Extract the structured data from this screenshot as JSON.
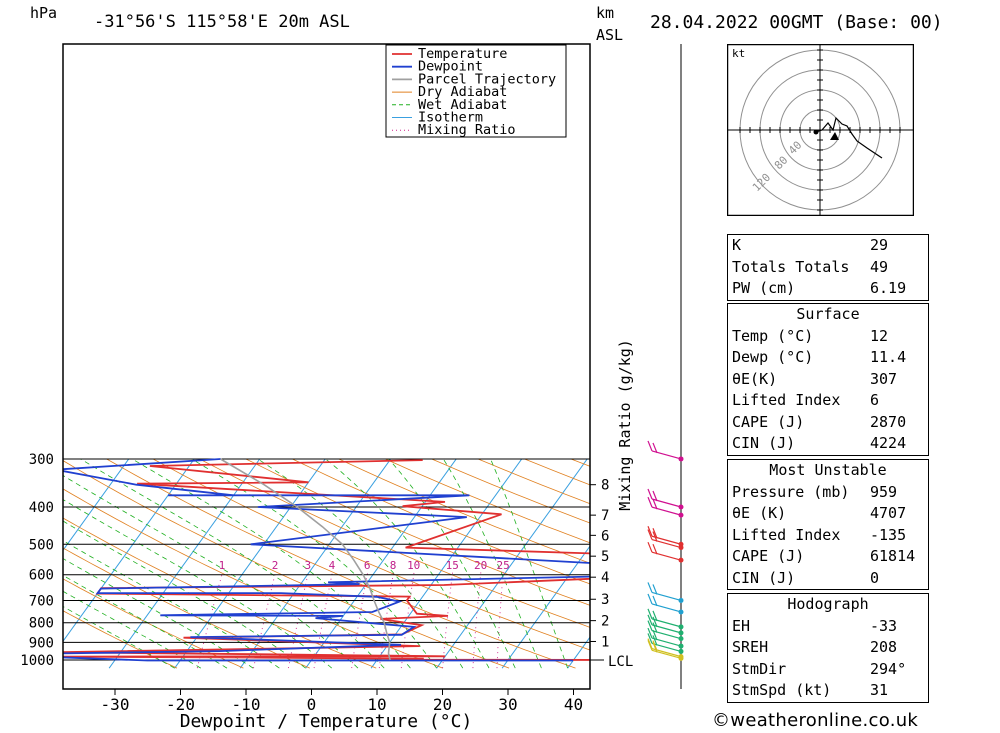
{
  "header": {
    "hpa": "hPa",
    "location": "-31°56'S 115°58'E 20m ASL",
    "km": "km",
    "asl": "ASL",
    "datetime": "28.04.2022 00GMT (Base: 00)"
  },
  "chart_data": {
    "type": "line",
    "xlabel": "Dewpoint / Temperature (°C)",
    "ylabel": "hPa",
    "x_ticks": [
      -30,
      -20,
      -10,
      0,
      10,
      20,
      30,
      40
    ],
    "y_ticks": [
      300,
      400,
      500,
      600,
      700,
      800,
      900,
      1000
    ],
    "xlim": [
      -38,
      42
    ],
    "ylim": [
      1050,
      300
    ],
    "skew": "skew-T log-p",
    "km_ticks": [
      {
        "km": "8",
        "p": 350
      },
      {
        "km": "7",
        "p": 420
      },
      {
        "km": "6",
        "p": 474
      },
      {
        "km": "5",
        "p": 537
      },
      {
        "km": "4",
        "p": 609
      },
      {
        "km": "3",
        "p": 695
      },
      {
        "km": "2",
        "p": 790
      },
      {
        "km": "1",
        "p": 895
      }
    ],
    "lcl_label": "LCL",
    "lcl_p": 1000,
    "mixing_ratio_label": "Mixing Ratio (g/kg)",
    "mixing_ratio_values": [
      "1",
      "2",
      "3",
      "4",
      "6",
      "8",
      "10",
      "15",
      "20",
      "25"
    ],
    "legend": {
      "placement": "top-right",
      "items": [
        {
          "name": "Temperature",
          "color": "#e03030"
        },
        {
          "name": "Dewpoint",
          "color": "#2040d0"
        },
        {
          "name": "Parcel Trajectory",
          "color": "#a0a0a0"
        },
        {
          "name": "Dry Adiabat",
          "color": "#e08020"
        },
        {
          "name": "Wet Adiabat",
          "color": "#20b020"
        },
        {
          "name": "Isotherm",
          "color": "#3aa0e0"
        },
        {
          "name": "Mixing Ratio",
          "color": "#d0208a"
        }
      ]
    },
    "series": [
      {
        "name": "Temperature",
        "color": "#e03030",
        "points": [
          [
            -5,
            302
          ],
          [
            -46,
            313
          ],
          [
            -20,
            345
          ],
          [
            -46,
            348
          ],
          [
            3,
            388
          ],
          [
            -3,
            398
          ],
          [
            13,
            418
          ],
          [
            2,
            510
          ],
          [
            45,
            537
          ],
          [
            58,
            592
          ],
          [
            42,
            606
          ],
          [
            12,
            638
          ],
          [
            -40,
            650
          ],
          [
            -40,
            672
          ],
          [
            8,
            684
          ],
          [
            8,
            700
          ],
          [
            11,
            758
          ],
          [
            16,
            768
          ],
          [
            6,
            782
          ],
          [
            13,
            812
          ],
          [
            11,
            858
          ],
          [
            -22,
            875
          ],
          [
            15,
            920
          ],
          [
            -40,
            955
          ],
          [
            -6,
            967
          ],
          [
            20,
            978
          ],
          [
            -40,
            980
          ],
          [
            -10,
            985
          ],
          [
            17,
            992
          ],
          [
            12,
            998
          ],
          [
            52,
            1000
          ]
        ]
      },
      {
        "name": "Dewpoint",
        "color": "#2040d0",
        "points": [
          [
            -36,
            300
          ],
          [
            -60,
            320
          ],
          [
            -46,
            350
          ],
          [
            -30,
            373
          ],
          [
            -40,
            373
          ],
          [
            6,
            373
          ],
          [
            -25,
            400
          ],
          [
            8,
            425
          ],
          [
            -22,
            500
          ],
          [
            45,
            575
          ],
          [
            45,
            595
          ],
          [
            37,
            605
          ],
          [
            -6,
            628
          ],
          [
            -1,
            635
          ],
          [
            -40,
            652
          ],
          [
            -40,
            670
          ],
          [
            -12,
            670
          ],
          [
            3,
            685
          ],
          [
            7,
            705
          ],
          [
            4,
            750
          ],
          [
            -28,
            765
          ],
          [
            0,
            768
          ],
          [
            -4,
            778
          ],
          [
            12,
            820
          ],
          [
            11,
            860
          ],
          [
            -21,
            872
          ],
          [
            12,
            913
          ],
          [
            -15,
            948
          ],
          [
            -40,
            962
          ],
          [
            -40,
            982
          ],
          [
            -25,
            1003
          ],
          [
            40,
            1003
          ]
        ]
      },
      {
        "name": "Parcel Trajectory",
        "color": "#a0a0a0",
        "points": [
          [
            12,
            1000
          ],
          [
            11,
            960
          ],
          [
            10,
            900
          ],
          [
            8.5,
            850
          ],
          [
            7,
            800
          ],
          [
            5,
            750
          ],
          [
            3,
            700
          ],
          [
            1,
            650
          ],
          [
            -1.5,
            600
          ],
          [
            -4.5,
            550
          ],
          [
            -8,
            500
          ],
          [
            -13,
            450
          ],
          [
            -19,
            400
          ],
          [
            -26.5,
            350
          ],
          [
            -36,
            300
          ]
        ]
      }
    ],
    "hodograph": {
      "unit": "kt",
      "ring_labels": [
        "40",
        "80",
        "120"
      ],
      "storm_motion": "294° 31kt"
    },
    "wind_profile": {
      "levels_hpa": [
        300,
        400,
        420,
        500,
        510,
        550,
        700,
        750,
        820,
        850,
        880,
        920,
        950,
        980,
        990
      ]
    }
  },
  "indices": {
    "top": [
      {
        "k": "K",
        "v": "29"
      },
      {
        "k": "Totals Totals",
        "v": "49"
      },
      {
        "k": "PW (cm)",
        "v": "6.19"
      }
    ],
    "surface": {
      "title": "Surface",
      "rows": [
        {
          "k": "Temp (°C)",
          "v": "12"
        },
        {
          "k": "Dewp (°C)",
          "v": "11.4"
        },
        {
          "k": "θE(K)",
          "v": "307"
        },
        {
          "k": "Lifted Index",
          "v": "6"
        },
        {
          "k": "CAPE (J)",
          "v": "2870"
        },
        {
          "k": "CIN (J)",
          "v": "4224"
        }
      ]
    },
    "most_unstable": {
      "title": "Most Unstable",
      "rows": [
        {
          "k": "Pressure (mb)",
          "v": "959"
        },
        {
          "k": "θE (K)",
          "v": "4707"
        },
        {
          "k": "Lifted Index",
          "v": "-135"
        },
        {
          "k": "CAPE (J)",
          "v": "61814"
        },
        {
          "k": "CIN (J)",
          "v": "0"
        }
      ]
    },
    "hodograph": {
      "title": "Hodograph",
      "rows": [
        {
          "k": "EH",
          "v": "-33"
        },
        {
          "k": "SREH",
          "v": "208"
        },
        {
          "k": "StmDir",
          "v": "294°"
        },
        {
          "k": "StmSpd (kt)",
          "v": "31"
        }
      ]
    }
  },
  "footer": {
    "copyright": "©weatheronline.co.uk"
  }
}
